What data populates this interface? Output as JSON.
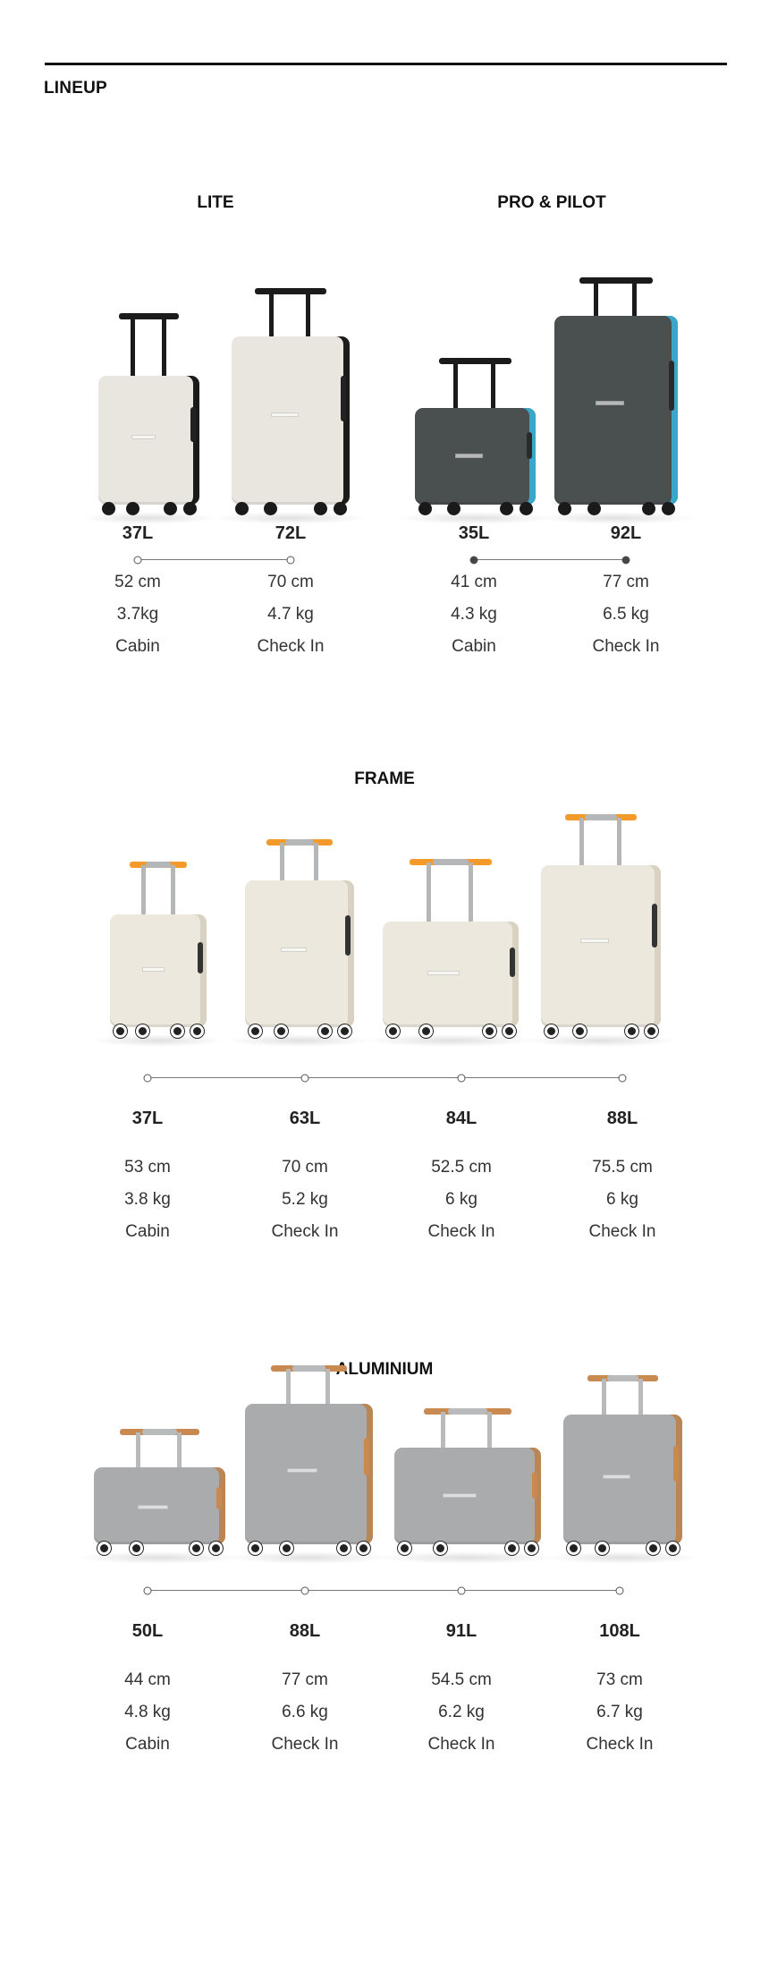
{
  "header": {
    "title": "LINEUP"
  },
  "colors": {
    "lite_body": "#e9e6df",
    "pro_body": "#4a4f50",
    "pro_accent": "#3aa7c9",
    "frame_body": "#ece8de",
    "frame_handle": "#f39a2a",
    "aluminium_body": "#a9abad",
    "aluminium_handle": "#c98a52"
  },
  "sections": [
    {
      "title": "LITE",
      "dots": "hollow",
      "models": [
        {
          "volume": "37L",
          "height": "52 cm",
          "weight": "3.7kg",
          "type": "Cabin"
        },
        {
          "volume": "72L",
          "height": "70 cm",
          "weight": "4.7 kg",
          "type": "Check In"
        }
      ]
    },
    {
      "title": "PRO & PILOT",
      "dots": "filled",
      "models": [
        {
          "volume": "35L",
          "height": "41 cm",
          "weight": "4.3 kg",
          "type": "Cabin"
        },
        {
          "volume": "92L",
          "height": "77 cm",
          "weight": "6.5 kg",
          "type": "Check In"
        }
      ]
    },
    {
      "title": "FRAME",
      "dots": "hollow",
      "models": [
        {
          "volume": "37L",
          "height": "53 cm",
          "weight": "3.8 kg",
          "type": "Cabin"
        },
        {
          "volume": "63L",
          "height": "70 cm",
          "weight": "5.2 kg",
          "type": "Check In"
        },
        {
          "volume": "84L",
          "height": "52.5 cm",
          "weight": "6 kg",
          "type": "Check In"
        },
        {
          "volume": "88L",
          "height": "75.5 cm",
          "weight": "6 kg",
          "type": "Check In"
        }
      ]
    },
    {
      "title": "ALUMINIUM",
      "dots": "hollow",
      "models": [
        {
          "volume": "50L",
          "height": "44 cm",
          "weight": "4.8 kg",
          "type": "Cabin"
        },
        {
          "volume": "88L",
          "height": "77 cm",
          "weight": "6.6 kg",
          "type": "Check In"
        },
        {
          "volume": "91L",
          "height": "54.5 cm",
          "weight": "6.2 kg",
          "type": "Check In"
        },
        {
          "volume": "108L",
          "height": "73 cm",
          "weight": "6.7 kg",
          "type": "Check In"
        }
      ]
    }
  ]
}
